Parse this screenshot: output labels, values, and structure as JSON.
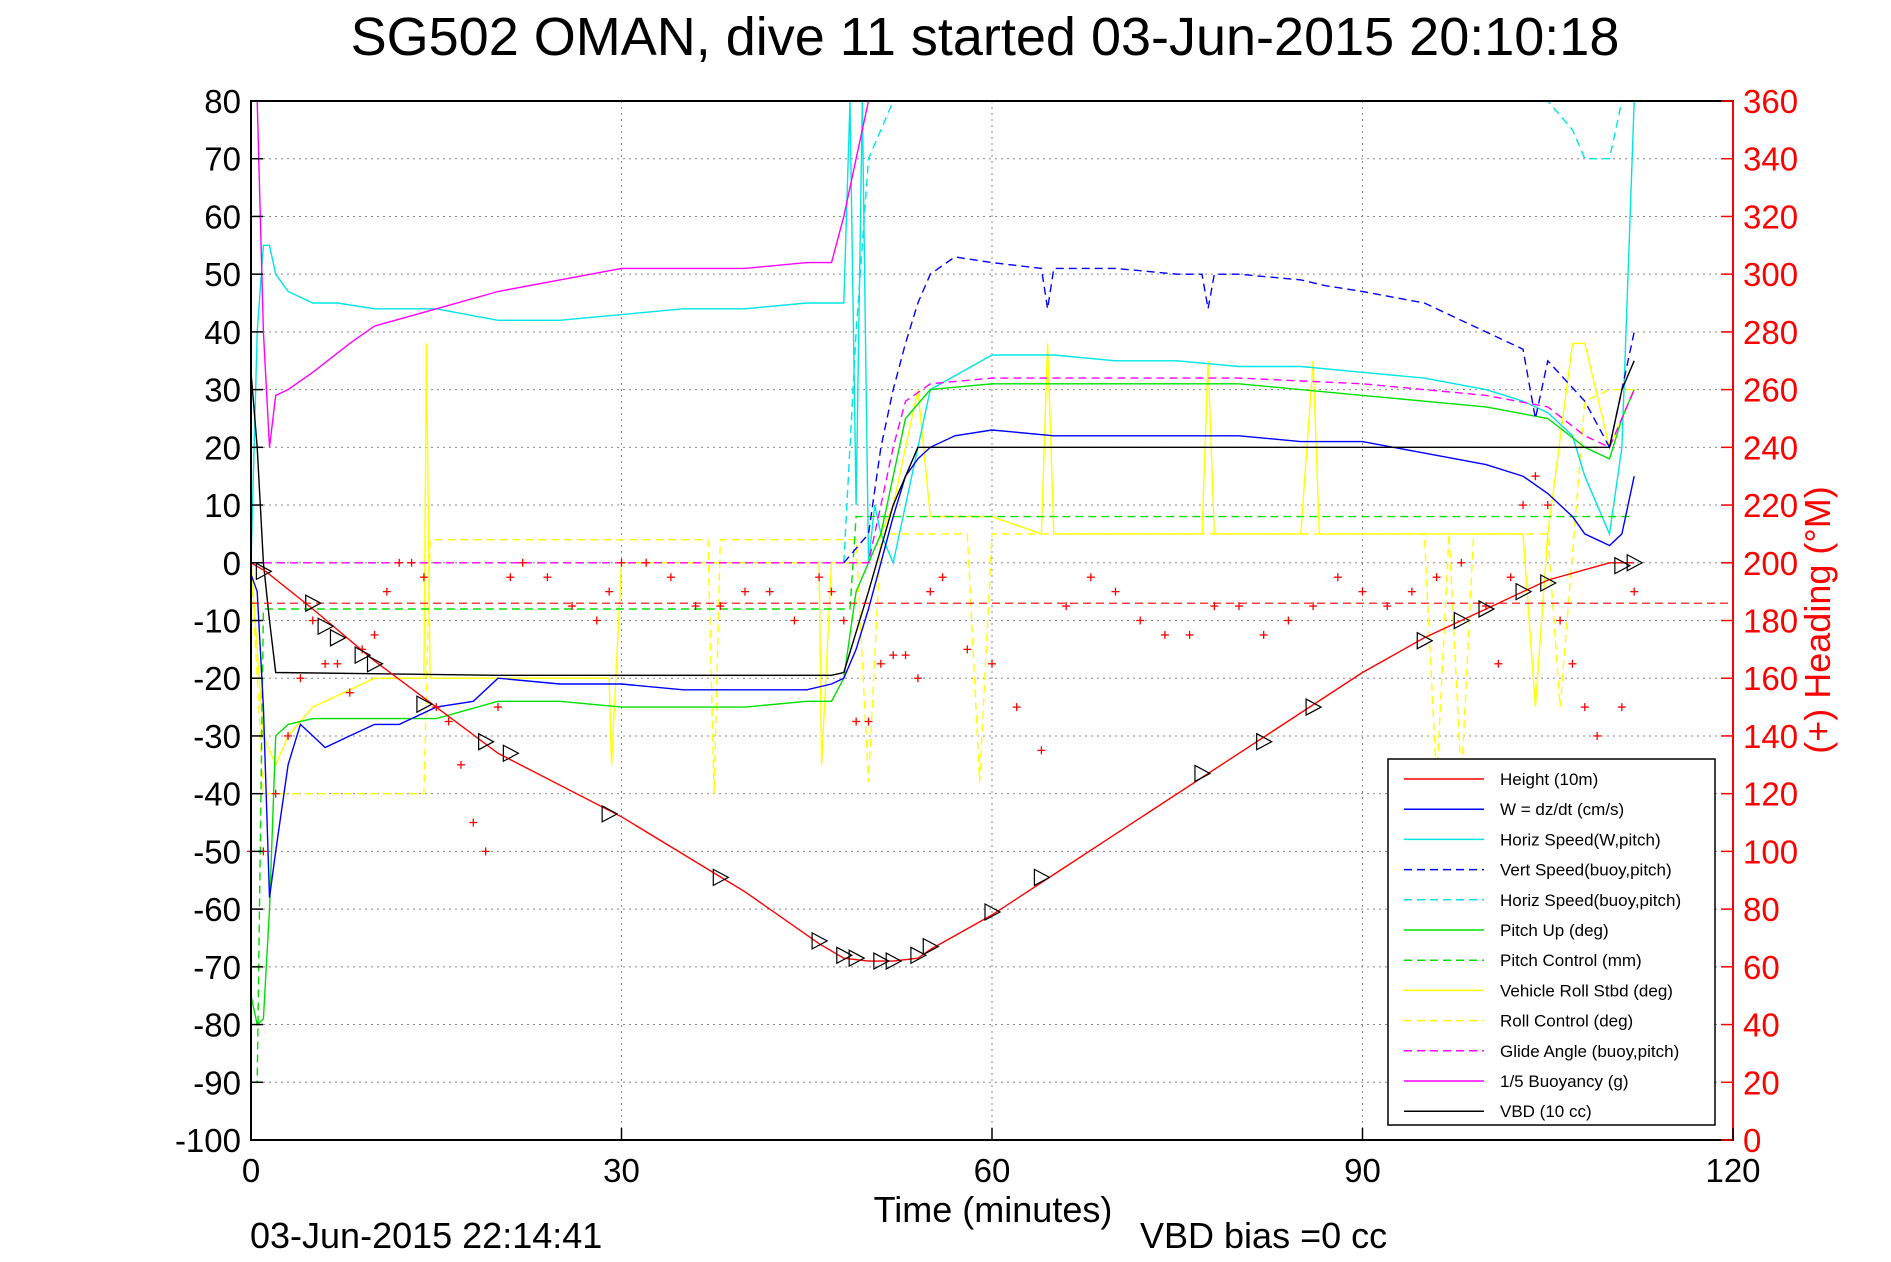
{
  "chart_data": {
    "type": "line",
    "title": "SG502 OMAN, dive 11 started 03-Jun-2015 20:10:18",
    "xlabel": "Time (minutes)",
    "ylabel": "",
    "ylabel_right": "(+) Heading (°M)",
    "xlim": [
      0,
      120
    ],
    "ylim": [
      -100,
      80
    ],
    "ylim_right": [
      0,
      360
    ],
    "xticks": [
      0,
      30,
      60,
      90,
      120
    ],
    "yticks": [
      80,
      70,
      60,
      50,
      40,
      30,
      20,
      10,
      0,
      -10,
      -20,
      -30,
      -40,
      -50,
      -60,
      -70,
      -80,
      -90,
      -100
    ],
    "yticks_right": [
      360,
      340,
      320,
      300,
      280,
      260,
      240,
      220,
      200,
      180,
      160,
      140,
      120,
      100,
      80,
      60,
      40,
      20,
      0
    ],
    "grid": true,
    "legend_position": "bottom-right",
    "footer_left": "03-Jun-2015 22:14:41",
    "footer_right": "VBD bias =0 cc",
    "series": [
      {
        "name": "Height (10m)",
        "color": "#ff0000",
        "style": "solid",
        "x": [
          0,
          1.2,
          5,
          10,
          20,
          30,
          40,
          46,
          48,
          50,
          52,
          54,
          55,
          60,
          65,
          70,
          80,
          90,
          95,
          100,
          105,
          110,
          112
        ],
        "y": [
          0,
          -1.5,
          -8,
          -17,
          -33,
          -44,
          -57,
          -66,
          -68.5,
          -69,
          -69,
          -68.5,
          -67,
          -61,
          -54,
          -47,
          -33,
          -19,
          -13,
          -8,
          -3,
          0,
          0
        ]
      },
      {
        "name": "W = dz/dt (cm/s)",
        "color": "#0000ff",
        "style": "solid",
        "x": [
          0,
          0.5,
          1,
          1.5,
          2,
          3,
          4,
          5,
          6,
          8,
          10,
          12,
          15,
          18,
          20,
          25,
          30,
          35,
          40,
          45,
          47,
          48,
          49,
          50,
          51,
          52,
          53,
          54,
          55,
          57,
          60,
          65,
          70,
          75,
          80,
          85,
          90,
          95,
          100,
          103,
          105,
          107,
          108,
          110,
          111,
          112
        ],
        "y": [
          -2,
          -5,
          -25,
          -58,
          -50,
          -35,
          -28,
          -30,
          -32,
          -30,
          -28,
          -28,
          -25,
          -24,
          -20,
          -21,
          -21,
          -22,
          -22,
          -22,
          -21,
          -20,
          -15,
          -8,
          0,
          8,
          15,
          18,
          20,
          22,
          23,
          22,
          22,
          22,
          22,
          21,
          21,
          19,
          17,
          15,
          12,
          8,
          5,
          3,
          5,
          15
        ]
      },
      {
        "name": "Horiz Speed(W,pitch)",
        "color": "#00e5e5",
        "style": "solid",
        "x": [
          0,
          0.5,
          1,
          1.5,
          2,
          3,
          5,
          7,
          10,
          15,
          20,
          25,
          30,
          35,
          40,
          45,
          47,
          48,
          48.5,
          49,
          49.5,
          50,
          50.5,
          51,
          52,
          53,
          55,
          60,
          65,
          70,
          75,
          80,
          85,
          90,
          95,
          100,
          103,
          105,
          107,
          108,
          110,
          111,
          112
        ],
        "y": [
          0,
          40,
          55,
          55,
          50,
          47,
          45,
          45,
          44,
          44,
          42,
          42,
          43,
          44,
          44,
          45,
          45,
          45,
          80,
          10,
          80,
          0,
          10,
          5,
          0,
          10,
          30,
          36,
          36,
          35,
          35,
          34,
          34,
          33,
          32,
          30,
          28,
          26,
          22,
          15,
          5,
          20,
          80
        ]
      },
      {
        "name": "Vert Speed(buoy,pitch)",
        "color": "#0000ff",
        "style": "dashed",
        "x": [
          48,
          50,
          51,
          52,
          53,
          54,
          55,
          57,
          60,
          64,
          64.5,
          65,
          70,
          75,
          77,
          77.5,
          78,
          80,
          85,
          87,
          90,
          95,
          100,
          103,
          104,
          105,
          108,
          110,
          111,
          112
        ],
        "y": [
          0,
          5,
          20,
          30,
          38,
          45,
          50,
          53,
          52,
          51,
          44,
          51,
          51,
          50,
          50,
          44,
          50,
          50,
          49,
          48,
          47,
          45,
          40,
          37,
          25,
          35,
          28,
          20,
          30,
          40
        ]
      },
      {
        "name": "Horiz Speed(buoy,pitch)",
        "color": "#00e5e5",
        "style": "dashed",
        "x": [
          48,
          49,
          50,
          51,
          52,
          53,
          54,
          55,
          58,
          62,
          70,
          80,
          90,
          95,
          100,
          103,
          105,
          107,
          108,
          110,
          111,
          112
        ],
        "y": [
          0,
          40,
          70,
          75,
          80,
          85,
          90,
          95,
          100,
          105,
          115,
          120,
          110,
          105,
          100,
          90,
          85,
          75,
          70,
          70,
          80,
          100
        ]
      },
      {
        "name": "Pitch Up (deg)",
        "color": "#00e000",
        "style": "solid",
        "x": [
          0,
          0.5,
          1,
          1.5,
          2,
          3,
          5,
          10,
          15,
          20,
          25,
          30,
          35,
          40,
          45,
          47,
          48,
          49,
          50,
          51,
          52,
          53,
          55,
          60,
          65,
          70,
          80,
          90,
          95,
          100,
          105,
          108,
          110,
          111,
          112
        ],
        "y": [
          -75,
          -80,
          -79,
          -60,
          -30,
          -28,
          -27,
          -27,
          -27,
          -24,
          -24,
          -25,
          -25,
          -25,
          -24,
          -24,
          -20,
          -5,
          0,
          5,
          15,
          25,
          30,
          31,
          31,
          31,
          31,
          29,
          28,
          27,
          25,
          20,
          18,
          25,
          30
        ]
      },
      {
        "name": "Pitch Control (mm)",
        "color": "#00e000",
        "style": "dashed",
        "x": [
          0,
          0.5,
          1,
          1.5,
          2,
          48,
          48.5,
          49,
          50,
          51,
          52,
          53,
          55,
          110,
          111,
          112
        ],
        "y": [
          -90,
          -90,
          -8,
          -8,
          -8,
          -8,
          -8,
          8,
          8,
          8,
          8,
          8,
          8,
          8,
          8,
          8
        ]
      },
      {
        "name": "Vehicle Roll Stbd (deg)",
        "color": "#ffff00",
        "style": "solid",
        "x": [
          0,
          1,
          2,
          3,
          5,
          10,
          14,
          14.2,
          14.5,
          15,
          20,
          29,
          29.2,
          30,
          45,
          46,
          46.2,
          47,
          50,
          51,
          52,
          54,
          55,
          58,
          60,
          64,
          64.5,
          65,
          70,
          77,
          77.5,
          78,
          85,
          86,
          86.5,
          87,
          95,
          100,
          103,
          104,
          105,
          107,
          108,
          110,
          112
        ],
        "y": [
          0,
          -30,
          -35,
          -30,
          -25,
          -20,
          -20,
          38,
          -20,
          -20,
          -20,
          -20,
          -35,
          0,
          0,
          0,
          -35,
          0,
          0,
          5,
          10,
          30,
          8,
          8,
          8,
          5,
          38,
          5,
          5,
          5,
          35,
          5,
          5,
          35,
          5,
          5,
          5,
          5,
          5,
          -25,
          5,
          38,
          38,
          20,
          30
        ]
      },
      {
        "name": "Roll Control (deg)",
        "color": "#ffff00",
        "style": "dashed",
        "x": [
          0,
          1,
          2,
          5,
          10,
          14,
          14.5,
          15,
          20,
          37,
          37.5,
          38,
          48,
          49,
          50,
          51,
          55,
          58,
          59,
          60,
          65,
          95,
          96,
          97,
          98,
          99,
          100,
          105,
          106,
          108,
          110,
          112
        ],
        "y": [
          0,
          -40,
          -40,
          -40,
          -40,
          -40,
          4,
          4,
          4,
          4,
          -40,
          4,
          4,
          4,
          -38,
          5,
          5,
          5,
          -38,
          5,
          5,
          5,
          -38,
          5,
          -38,
          5,
          5,
          5,
          -25,
          28,
          30,
          30
        ]
      },
      {
        "name": "Glide Angle (buoy,pitch)",
        "color": "#ff00ff",
        "style": "dashed",
        "x": [
          0,
          48,
          49,
          50,
          51,
          52,
          53,
          55,
          60,
          70,
          80,
          90,
          95,
          100,
          105,
          108,
          110,
          112
        ],
        "y": [
          0,
          0,
          0,
          0,
          10,
          20,
          28,
          31,
          32,
          32,
          32,
          31,
          30,
          29,
          27,
          22,
          20,
          30
        ]
      },
      {
        "name": "1/5 Buoyancy (g)",
        "color": "#ff00ff",
        "style": "solid",
        "x": [
          0.5,
          1,
          1.5,
          2,
          3,
          5,
          8,
          10,
          15,
          20,
          25,
          30,
          35,
          40,
          45,
          47,
          48,
          49,
          50
        ],
        "y": [
          80,
          40,
          20,
          29,
          30,
          33,
          38,
          41,
          44,
          47,
          49,
          51,
          51,
          51,
          52,
          52,
          60,
          70,
          80
        ]
      },
      {
        "name": "VBD (10 cc)",
        "color": "#000000",
        "style": "solid",
        "x": [
          0,
          0.5,
          1,
          1.5,
          2,
          20,
          47,
          48,
          50,
          52,
          54,
          55,
          110,
          111,
          112
        ],
        "y": [
          33,
          20,
          0,
          -10,
          -19,
          -19.5,
          -19.5,
          -19,
          -5,
          10,
          20,
          20,
          20,
          30,
          35
        ]
      }
    ],
    "heading_points": {
      "name": "Heading",
      "color": "#ff0000",
      "x": [
        0,
        1,
        2,
        3,
        4,
        5,
        6,
        7,
        8,
        9,
        10,
        11,
        12,
        13,
        14,
        15,
        16,
        17,
        18,
        19,
        20,
        21,
        22,
        24,
        26,
        28,
        29,
        30,
        32,
        34,
        36,
        38,
        40,
        42,
        44,
        46,
        47,
        48,
        49,
        50,
        51,
        52,
        53,
        54,
        55,
        56,
        58,
        60,
        62,
        64,
        66,
        68,
        70,
        72,
        74,
        76,
        78,
        80,
        82,
        84,
        86,
        88,
        90,
        92,
        94,
        96,
        98,
        100,
        101,
        102,
        103,
        104,
        105,
        106,
        107,
        108,
        109,
        110,
        111,
        112
      ],
      "y": [
        100,
        100,
        120,
        140,
        160,
        180,
        165,
        165,
        155,
        170,
        175,
        190,
        200,
        200,
        195,
        150,
        145,
        130,
        110,
        100,
        150,
        195,
        200,
        195,
        185,
        180,
        190,
        200,
        200,
        195,
        185,
        185,
        190,
        190,
        180,
        195,
        190,
        180,
        145,
        145,
        165,
        168,
        168,
        160,
        190,
        195,
        170,
        165,
        150,
        135,
        185,
        195,
        190,
        180,
        175,
        175,
        185,
        185,
        175,
        180,
        185,
        195,
        190,
        185,
        190,
        195,
        200,
        185,
        165,
        195,
        220,
        230,
        220,
        180,
        165,
        150,
        140,
        130,
        150,
        190
      ]
    },
    "pitch_rt_line": {
      "color": "#ff0000",
      "style": "dashed",
      "y_right": 186
    },
    "triangle_markers": {
      "color": "#000000",
      "x": [
        1,
        5,
        6,
        7,
        9,
        10,
        14,
        19,
        21,
        29,
        38,
        46,
        48,
        49,
        51,
        52,
        54,
        55,
        60,
        64,
        77,
        82,
        86,
        95,
        98,
        100,
        103,
        105,
        111,
        112
      ],
      "y": [
        -1.5,
        -7,
        -11,
        -13,
        -16,
        -17.5,
        -24.5,
        -31,
        -33,
        -43.5,
        -54.5,
        -65.5,
        -68,
        -68.5,
        -69,
        -69,
        -68,
        -66.5,
        -60.5,
        -54.5,
        -36.5,
        -31,
        -25,
        -13.5,
        -10,
        -8,
        -5,
        -3.5,
        -0.5,
        0
      ]
    }
  },
  "legend": {
    "items": [
      {
        "label": "Height (10m)",
        "color": "#ff0000",
        "style": "solid"
      },
      {
        "label": "W = dz/dt (cm/s)",
        "color": "#0000ff",
        "style": "solid"
      },
      {
        "label": "Horiz Speed(W,pitch)",
        "color": "#00e5e5",
        "style": "solid"
      },
      {
        "label": "Vert Speed(buoy,pitch)",
        "color": "#0000ff",
        "style": "dashed"
      },
      {
        "label": "Horiz Speed(buoy,pitch)",
        "color": "#00e5e5",
        "style": "dashed"
      },
      {
        "label": "Pitch Up (deg)",
        "color": "#00e000",
        "style": "solid"
      },
      {
        "label": "Pitch Control (mm)",
        "color": "#00e000",
        "style": "dashed"
      },
      {
        "label": "Vehicle Roll Stbd (deg)",
        "color": "#ffff00",
        "style": "solid"
      },
      {
        "label": "Roll Control (deg)",
        "color": "#ffff00",
        "style": "dashed"
      },
      {
        "label": "Glide Angle (buoy,pitch)",
        "color": "#ff00ff",
        "style": "dashed"
      },
      {
        "label": "1/5 Buoyancy (g)",
        "color": "#ff00ff",
        "style": "solid"
      },
      {
        "label": "VBD (10 cc)",
        "color": "#000000",
        "style": "solid"
      }
    ]
  },
  "colors": {
    "axis_left": "#000000",
    "axis_right": "#ff0000",
    "grid": "#888888"
  }
}
